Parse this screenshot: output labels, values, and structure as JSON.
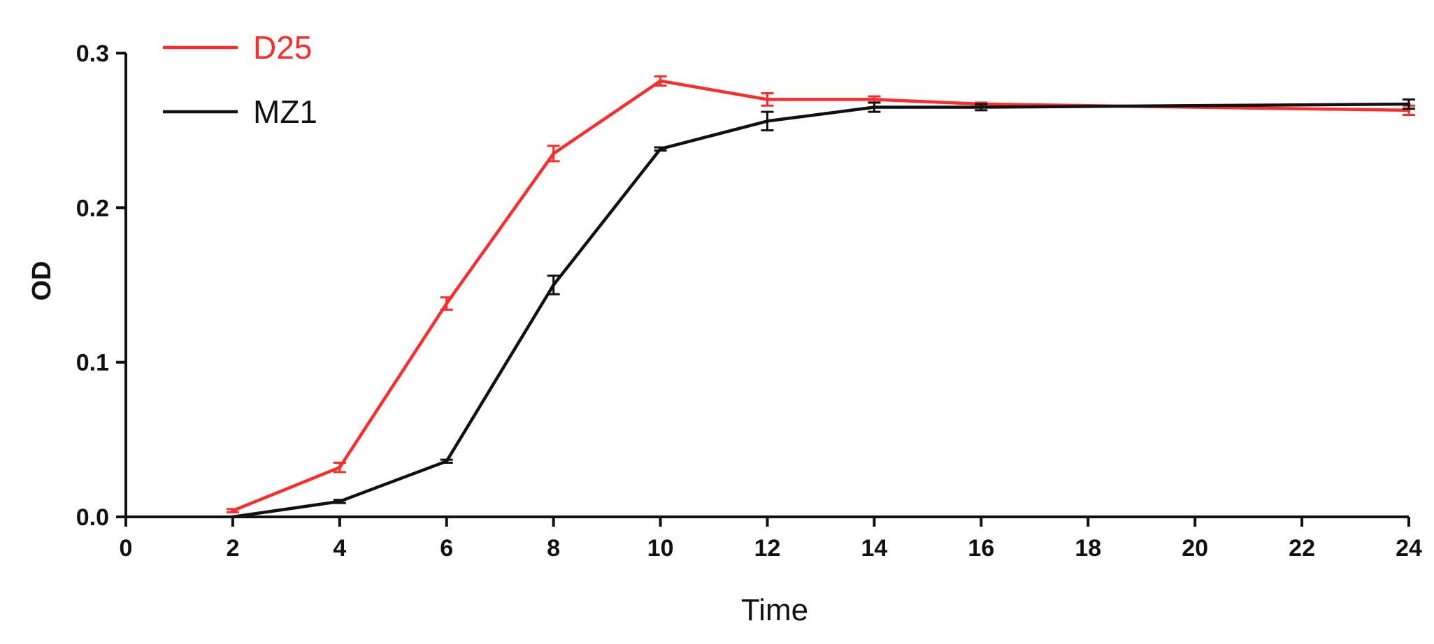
{
  "chart_data": {
    "type": "line",
    "title": "",
    "xlabel": "Time",
    "ylabel": "OD",
    "xlim": [
      0,
      24
    ],
    "ylim": [
      0,
      0.3
    ],
    "x_ticks": [
      0,
      2,
      4,
      6,
      8,
      10,
      12,
      14,
      16,
      18,
      20,
      22,
      24
    ],
    "y_ticks": [
      0.0,
      0.1,
      0.2,
      0.3
    ],
    "x_tick_labels": [
      "0",
      "2",
      "4",
      "6",
      "8",
      "10",
      "12",
      "14",
      "16",
      "18",
      "20",
      "22",
      "24"
    ],
    "y_tick_labels": [
      "0.0",
      "0.1",
      "0.2",
      "0.3"
    ],
    "grid": false,
    "legend_position": "top-left",
    "series": [
      {
        "name": "D25",
        "color": "#ff2a2a",
        "x": [
          2,
          4,
          6,
          8,
          10,
          12,
          14,
          16,
          24
        ],
        "y": [
          0.004,
          0.032,
          0.138,
          0.235,
          0.282,
          0.27,
          0.27,
          0.267,
          0.263
        ],
        "err": [
          0.001,
          0.003,
          0.004,
          0.005,
          0.003,
          0.004,
          0.002,
          0.001,
          0.003
        ]
      },
      {
        "name": "MZ1",
        "color": "#111111",
        "x": [
          2,
          4,
          6,
          8,
          10,
          12,
          14,
          16,
          24
        ],
        "y": [
          0.0,
          0.01,
          0.036,
          0.15,
          0.238,
          0.256,
          0.265,
          0.265,
          0.267
        ],
        "err": [
          0.0,
          0.001,
          0.001,
          0.006,
          0.001,
          0.006,
          0.003,
          0.002,
          0.003
        ]
      }
    ]
  }
}
